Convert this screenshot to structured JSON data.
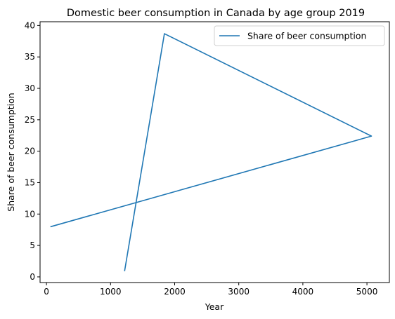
{
  "chart_data": {
    "type": "line",
    "title": "Domestic beer consumption in Canada by age group 2019",
    "xlabel": "Year",
    "ylabel": "Share of beer consumption",
    "xlim": [
      -100,
      5350
    ],
    "ylim": [
      -0.9,
      40.6
    ],
    "xticks": [
      0,
      1000,
      2000,
      3000,
      4000,
      5000
    ],
    "yticks": [
      0,
      5,
      10,
      15,
      20,
      25,
      30,
      35,
      40
    ],
    "grid": false,
    "legend_position": "top-right",
    "series": [
      {
        "name": "Share of beer consumption",
        "color": "#1f77b4",
        "x": [
          1220,
          1840,
          5070,
          70
        ],
        "y": [
          1.0,
          38.7,
          22.4,
          8.0
        ]
      }
    ]
  }
}
